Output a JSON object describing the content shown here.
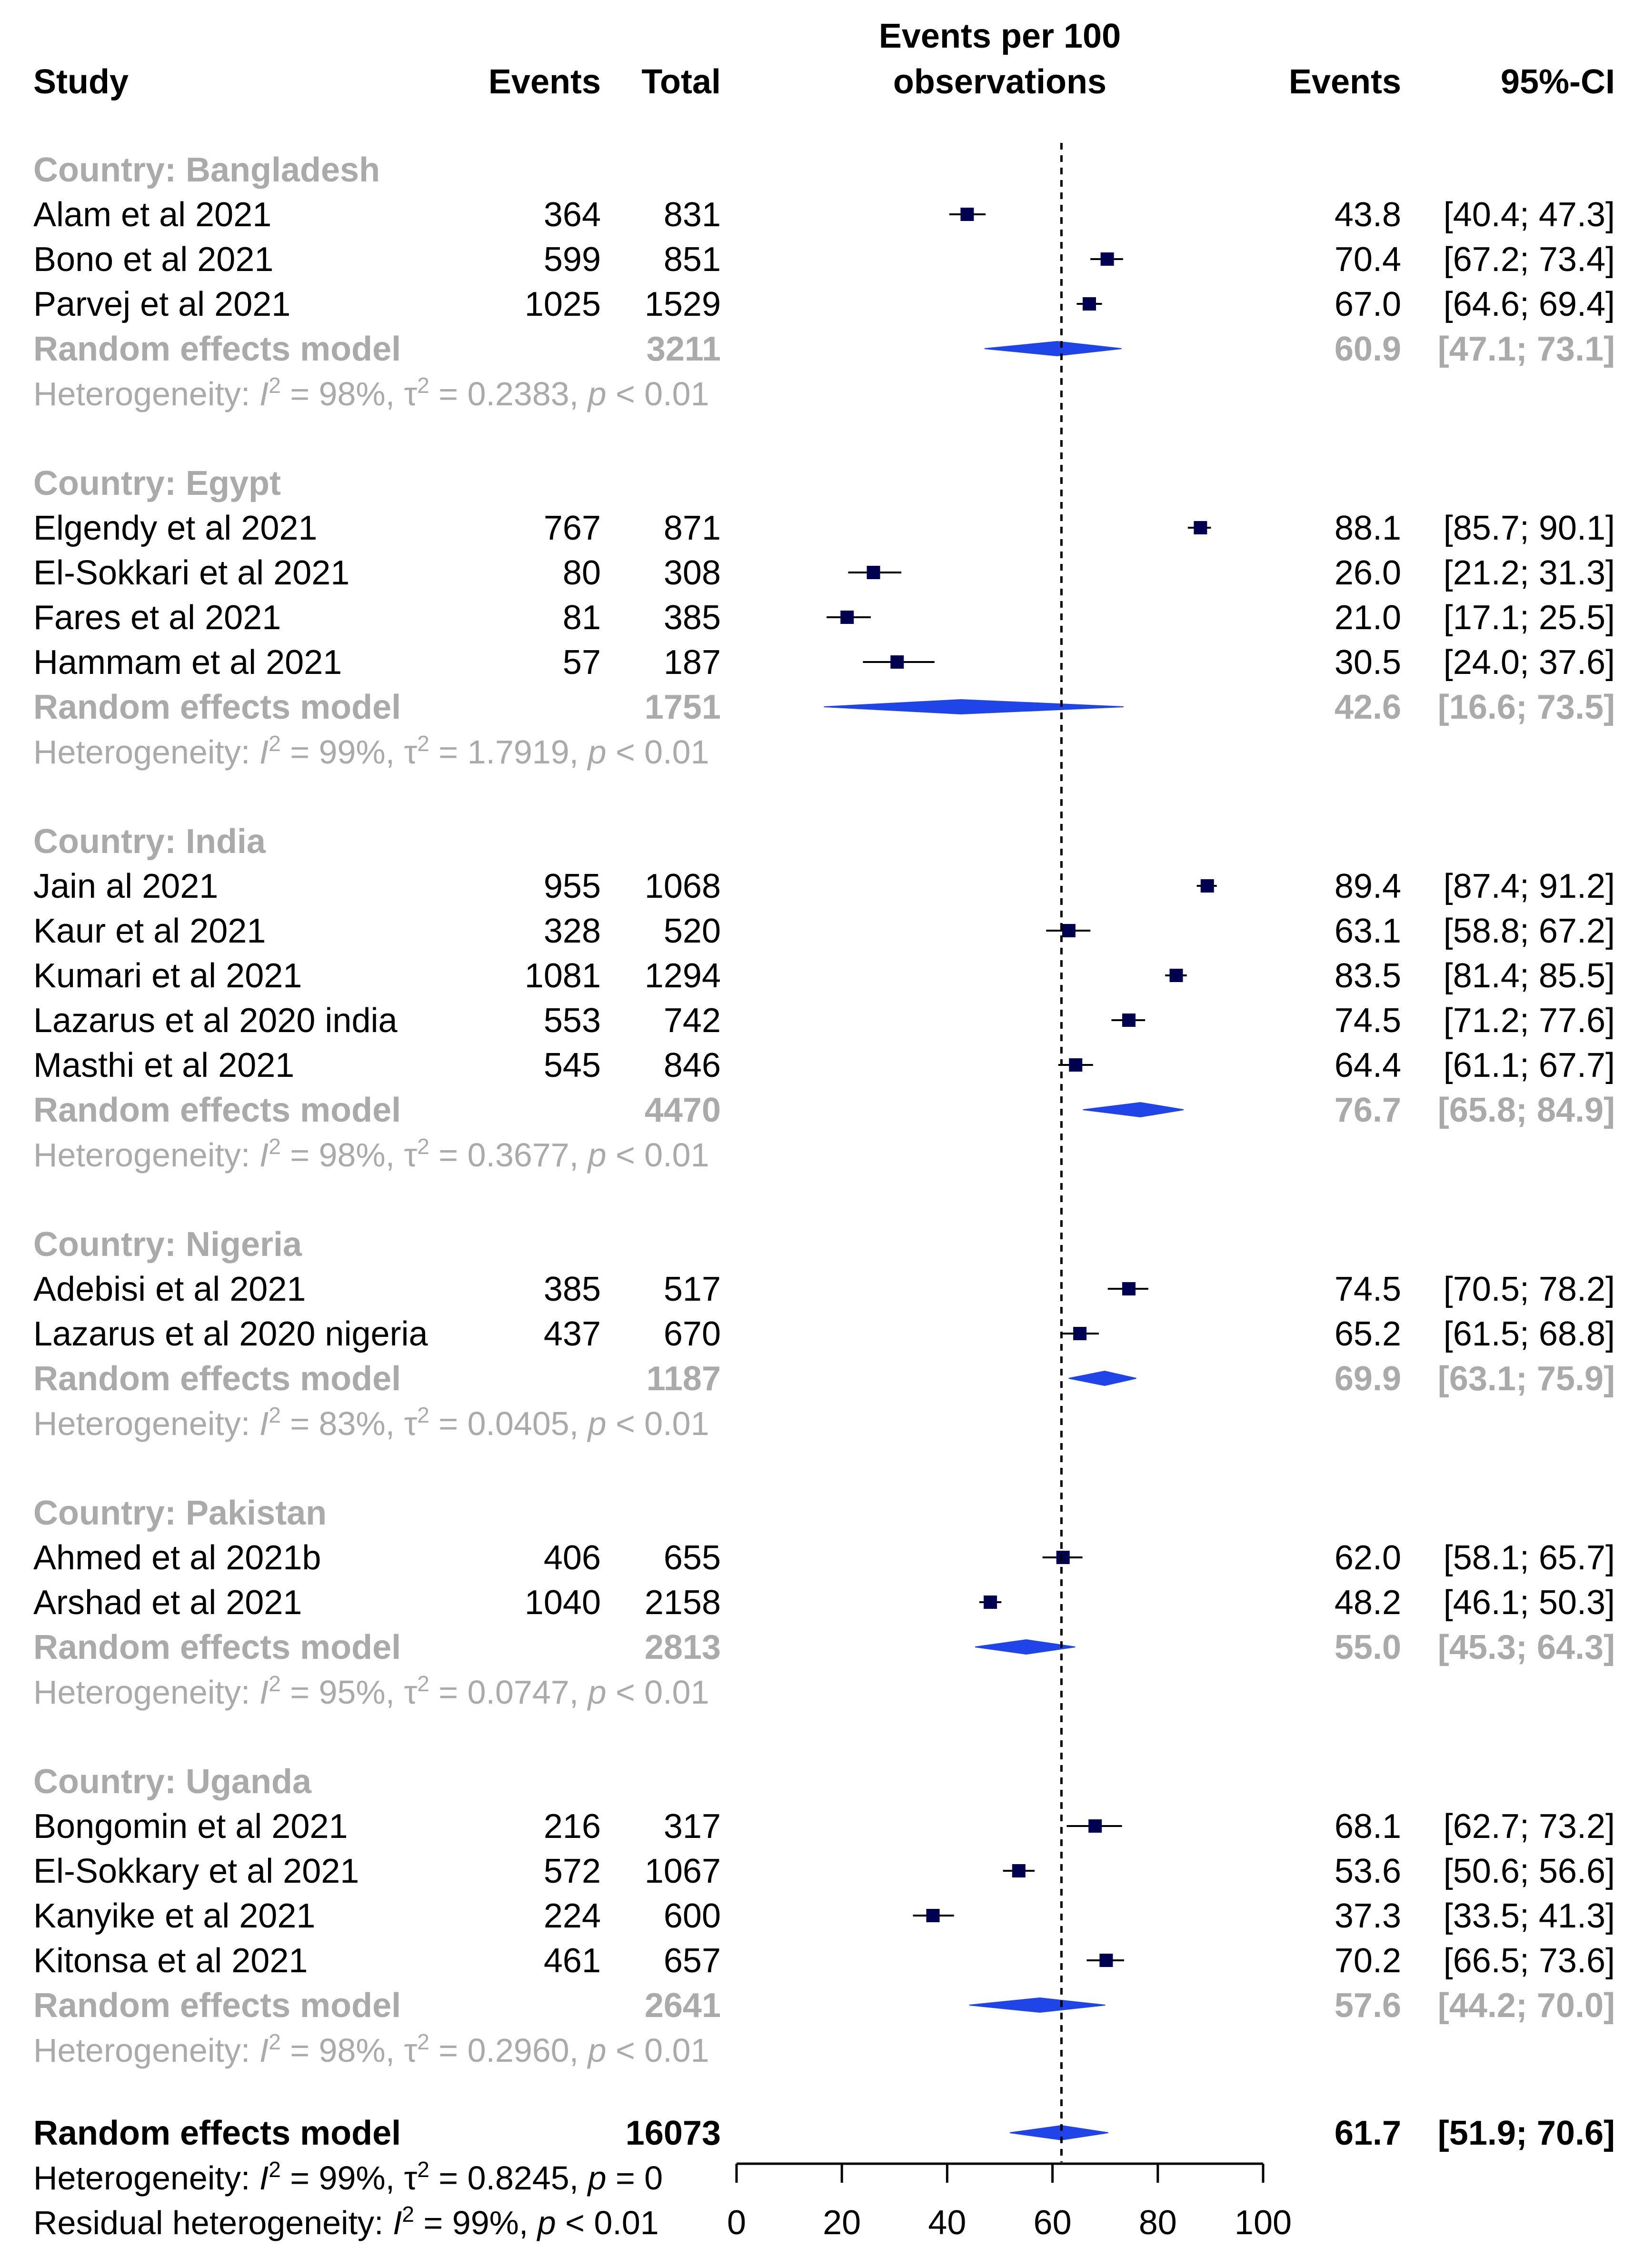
{
  "chart_data": {
    "type": "forest",
    "header": {
      "study": "Study",
      "events": "Events",
      "total": "Total",
      "plot_title_line1": "Events per 100",
      "plot_title_line2": "observations",
      "events_right": "Events",
      "ci": "95%-CI"
    },
    "axis": {
      "min": 0,
      "max": 100,
      "ticks": [
        "0",
        "20",
        "40",
        "60",
        "80",
        "100"
      ]
    },
    "overall_reference": 61.7,
    "colors": {
      "grey": "#aaaaaa",
      "square": "#000050",
      "diamond": "#1f44e8",
      "black": "#000000"
    },
    "groups": [
      {
        "label": "Country: Bangladesh",
        "studies": [
          {
            "name": "Alam et al 2021",
            "events": "364",
            "total": "831",
            "est": 43.8,
            "lo": 40.4,
            "hi": 47.3,
            "est_text": "43.8",
            "ci_text": "[40.4; 47.3]"
          },
          {
            "name": "Bono et al 2021",
            "events": "599",
            "total": "851",
            "est": 70.4,
            "lo": 67.2,
            "hi": 73.4,
            "est_text": "70.4",
            "ci_text": "[67.2; 73.4]"
          },
          {
            "name": "Parvej et al 2021",
            "events": "1025",
            "total": "1529",
            "est": 67.0,
            "lo": 64.6,
            "hi": 69.4,
            "est_text": "67.0",
            "ci_text": "[64.6; 69.4]"
          }
        ],
        "model": {
          "label": "Random effects model",
          "total": "3211",
          "est": 60.9,
          "lo": 47.1,
          "hi": 73.1,
          "est_text": "60.9",
          "ci_text": "[47.1; 73.1]"
        },
        "heterogeneity": {
          "prefix": "Heterogeneity: ",
          "i2": "= 98%, ",
          "tau2": "= 0.2383, ",
          "p": " < 0.01"
        }
      },
      {
        "label": "Country: Egypt",
        "studies": [
          {
            "name": "Elgendy et al 2021",
            "events": "767",
            "total": "871",
            "est": 88.1,
            "lo": 85.7,
            "hi": 90.1,
            "est_text": "88.1",
            "ci_text": "[85.7; 90.1]"
          },
          {
            "name": "El-Sokkari et al 2021",
            "events": "80",
            "total": "308",
            "est": 26.0,
            "lo": 21.2,
            "hi": 31.3,
            "est_text": "26.0",
            "ci_text": "[21.2; 31.3]"
          },
          {
            "name": "Fares et al 2021",
            "events": "81",
            "total": "385",
            "est": 21.0,
            "lo": 17.1,
            "hi": 25.5,
            "est_text": "21.0",
            "ci_text": "[17.1; 25.5]"
          },
          {
            "name": "Hammam et al 2021",
            "events": "57",
            "total": "187",
            "est": 30.5,
            "lo": 24.0,
            "hi": 37.6,
            "est_text": "30.5",
            "ci_text": "[24.0; 37.6]"
          }
        ],
        "model": {
          "label": "Random effects model",
          "total": "1751",
          "est": 42.6,
          "lo": 16.6,
          "hi": 73.5,
          "est_text": "42.6",
          "ci_text": "[16.6; 73.5]"
        },
        "heterogeneity": {
          "prefix": "Heterogeneity: ",
          "i2": "= 99%, ",
          "tau2": "= 1.7919, ",
          "p": " < 0.01"
        }
      },
      {
        "label": "Country: India",
        "studies": [
          {
            "name": "Jain al 2021",
            "events": "955",
            "total": "1068",
            "est": 89.4,
            "lo": 87.4,
            "hi": 91.2,
            "est_text": "89.4",
            "ci_text": "[87.4; 91.2]"
          },
          {
            "name": "Kaur et al 2021",
            "events": "328",
            "total": "520",
            "est": 63.1,
            "lo": 58.8,
            "hi": 67.2,
            "est_text": "63.1",
            "ci_text": "[58.8; 67.2]"
          },
          {
            "name": "Kumari et al 2021",
            "events": "1081",
            "total": "1294",
            "est": 83.5,
            "lo": 81.4,
            "hi": 85.5,
            "est_text": "83.5",
            "ci_text": "[81.4; 85.5]"
          },
          {
            "name": "Lazarus et al 2020 india",
            "events": "553",
            "total": "742",
            "est": 74.5,
            "lo": 71.2,
            "hi": 77.6,
            "est_text": "74.5",
            "ci_text": "[71.2; 77.6]"
          },
          {
            "name": "Masthi et al 2021",
            "events": "545",
            "total": "846",
            "est": 64.4,
            "lo": 61.1,
            "hi": 67.7,
            "est_text": "64.4",
            "ci_text": "[61.1; 67.7]"
          }
        ],
        "model": {
          "label": "Random effects model",
          "total": "4470",
          "est": 76.7,
          "lo": 65.8,
          "hi": 84.9,
          "est_text": "76.7",
          "ci_text": "[65.8; 84.9]"
        },
        "heterogeneity": {
          "prefix": "Heterogeneity: ",
          "i2": "= 98%, ",
          "tau2": "= 0.3677, ",
          "p": " < 0.01"
        }
      },
      {
        "label": "Country: Nigeria",
        "studies": [
          {
            "name": "Adebisi et al 2021",
            "events": "385",
            "total": "517",
            "est": 74.5,
            "lo": 70.5,
            "hi": 78.2,
            "est_text": "74.5",
            "ci_text": "[70.5; 78.2]"
          },
          {
            "name": "Lazarus et al 2020 nigeria",
            "events": "437",
            "total": "670",
            "est": 65.2,
            "lo": 61.5,
            "hi": 68.8,
            "est_text": "65.2",
            "ci_text": "[61.5; 68.8]"
          }
        ],
        "model": {
          "label": "Random effects model",
          "total": "1187",
          "est": 69.9,
          "lo": 63.1,
          "hi": 75.9,
          "est_text": "69.9",
          "ci_text": "[63.1; 75.9]"
        },
        "heterogeneity": {
          "prefix": "Heterogeneity: ",
          "i2": "= 83%, ",
          "tau2": "= 0.0405, ",
          "p": " < 0.01"
        }
      },
      {
        "label": "Country: Pakistan",
        "studies": [
          {
            "name": "Ahmed et al 2021b",
            "events": "406",
            "total": "655",
            "est": 62.0,
            "lo": 58.1,
            "hi": 65.7,
            "est_text": "62.0",
            "ci_text": "[58.1; 65.7]"
          },
          {
            "name": "Arshad et al 2021",
            "events": "1040",
            "total": "2158",
            "est": 48.2,
            "lo": 46.1,
            "hi": 50.3,
            "est_text": "48.2",
            "ci_text": "[46.1; 50.3]"
          }
        ],
        "model": {
          "label": "Random effects model",
          "total": "2813",
          "est": 55.0,
          "lo": 45.3,
          "hi": 64.3,
          "est_text": "55.0",
          "ci_text": "[45.3; 64.3]"
        },
        "heterogeneity": {
          "prefix": "Heterogeneity: ",
          "i2": "= 95%, ",
          "tau2": "= 0.0747, ",
          "p": " < 0.01"
        }
      },
      {
        "label": "Country: Uganda",
        "studies": [
          {
            "name": "Bongomin et al 2021",
            "events": "216",
            "total": "317",
            "est": 68.1,
            "lo": 62.7,
            "hi": 73.2,
            "est_text": "68.1",
            "ci_text": "[62.7; 73.2]"
          },
          {
            "name": "El-Sokkary et al 2021",
            "events": "572",
            "total": "1067",
            "est": 53.6,
            "lo": 50.6,
            "hi": 56.6,
            "est_text": "53.6",
            "ci_text": "[50.6; 56.6]"
          },
          {
            "name": "Kanyike et al 2021",
            "events": "224",
            "total": "600",
            "est": 37.3,
            "lo": 33.5,
            "hi": 41.3,
            "est_text": "37.3",
            "ci_text": "[33.5; 41.3]"
          },
          {
            "name": "Kitonsa et al 2021",
            "events": "461",
            "total": "657",
            "est": 70.2,
            "lo": 66.5,
            "hi": 73.6,
            "est_text": "70.2",
            "ci_text": "[66.5; 73.6]"
          }
        ],
        "model": {
          "label": "Random effects model",
          "total": "2641",
          "est": 57.6,
          "lo": 44.2,
          "hi": 70.0,
          "est_text": "57.6",
          "ci_text": "[44.2; 70.0]"
        },
        "heterogeneity": {
          "prefix": "Heterogeneity: ",
          "i2": "= 98%, ",
          "tau2": "= 0.2960, ",
          "p": " < 0.01"
        }
      }
    ],
    "overall": {
      "label": "Random effects model",
      "total": "16073",
      "est": 61.7,
      "lo": 51.9,
      "hi": 70.6,
      "est_text": "61.7",
      "ci_text": "[51.9; 70.6]",
      "heterogeneity": {
        "prefix": "Heterogeneity: ",
        "i2": "= 99%, ",
        "tau2": "= 0.8245, ",
        "p": " = 0"
      },
      "residual": {
        "prefix": "Residual heterogeneity: ",
        "i2": "= 99%, ",
        "p": " < 0.01"
      }
    }
  }
}
